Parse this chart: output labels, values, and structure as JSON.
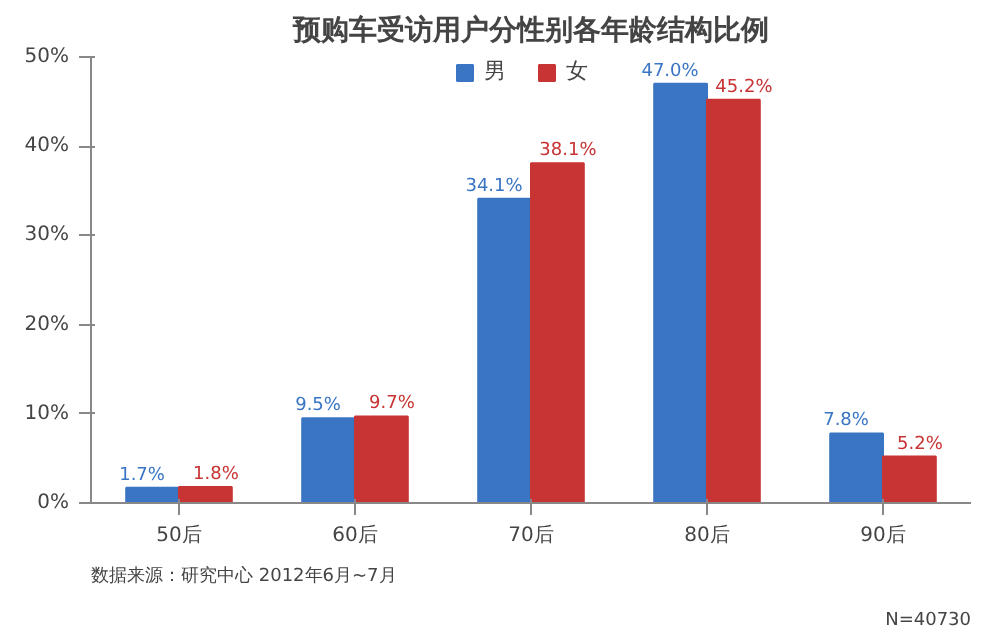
{
  "chart_data": {
    "type": "bar",
    "title": "预购车受访用户分性别各年龄结构比例",
    "categories": [
      "50后",
      "60后",
      "70后",
      "80后",
      "90后"
    ],
    "series": [
      {
        "name": "男",
        "color": "#3a75c4",
        "values": [
          1.7,
          9.5,
          34.1,
          47.0,
          7.8
        ],
        "value_labels": [
          "1.7%",
          "9.5%",
          "34.1%",
          "47.0%",
          "7.8%"
        ]
      },
      {
        "name": "女",
        "color": "#c83434",
        "values": [
          1.8,
          9.7,
          38.1,
          45.2,
          5.2
        ],
        "value_labels": [
          "1.8%",
          "9.7%",
          "38.1%",
          "45.2%",
          "5.2%"
        ]
      }
    ],
    "ylim": [
      0,
      50
    ],
    "yticks": [
      {
        "value": 0,
        "label": "0%"
      },
      {
        "value": 10,
        "label": "10%"
      },
      {
        "value": 20,
        "label": "20%"
      },
      {
        "value": 30,
        "label": "30%"
      },
      {
        "value": 40,
        "label": "40%"
      },
      {
        "value": 50,
        "label": "50%"
      }
    ],
    "grid": false,
    "legend": "top",
    "annotations": [
      "数据来源：研究中心 2012年6月~7月",
      "N=40730"
    ]
  }
}
